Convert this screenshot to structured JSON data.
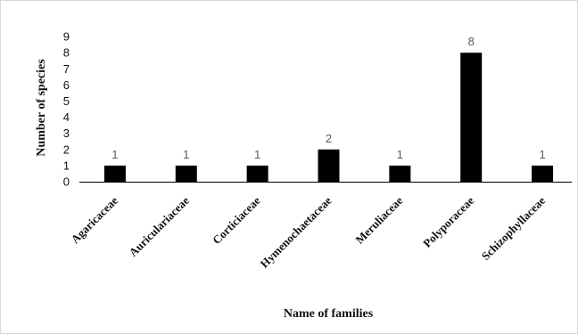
{
  "chart_data": {
    "type": "bar",
    "categories": [
      "Agaricaceae",
      "Auriculariaceae",
      "Corticiaceae",
      "Hymenochaetaceae",
      "Meruliaceae",
      "Polyporaceae",
      "Schizophyllaceae"
    ],
    "values": [
      1,
      1,
      1,
      2,
      1,
      8,
      1
    ],
    "data_labels": [
      "1",
      "1",
      "1",
      "2",
      "1",
      "8",
      "1"
    ],
    "xlabel": "Name of families",
    "ylabel": "Number of species",
    "ylim": [
      0,
      9
    ],
    "yticks": [
      "0",
      "1",
      "2",
      "3",
      "4",
      "5",
      "6",
      "7",
      "8",
      "9"
    ],
    "grid": false,
    "legend": "none",
    "bar_color": "#000000"
  }
}
